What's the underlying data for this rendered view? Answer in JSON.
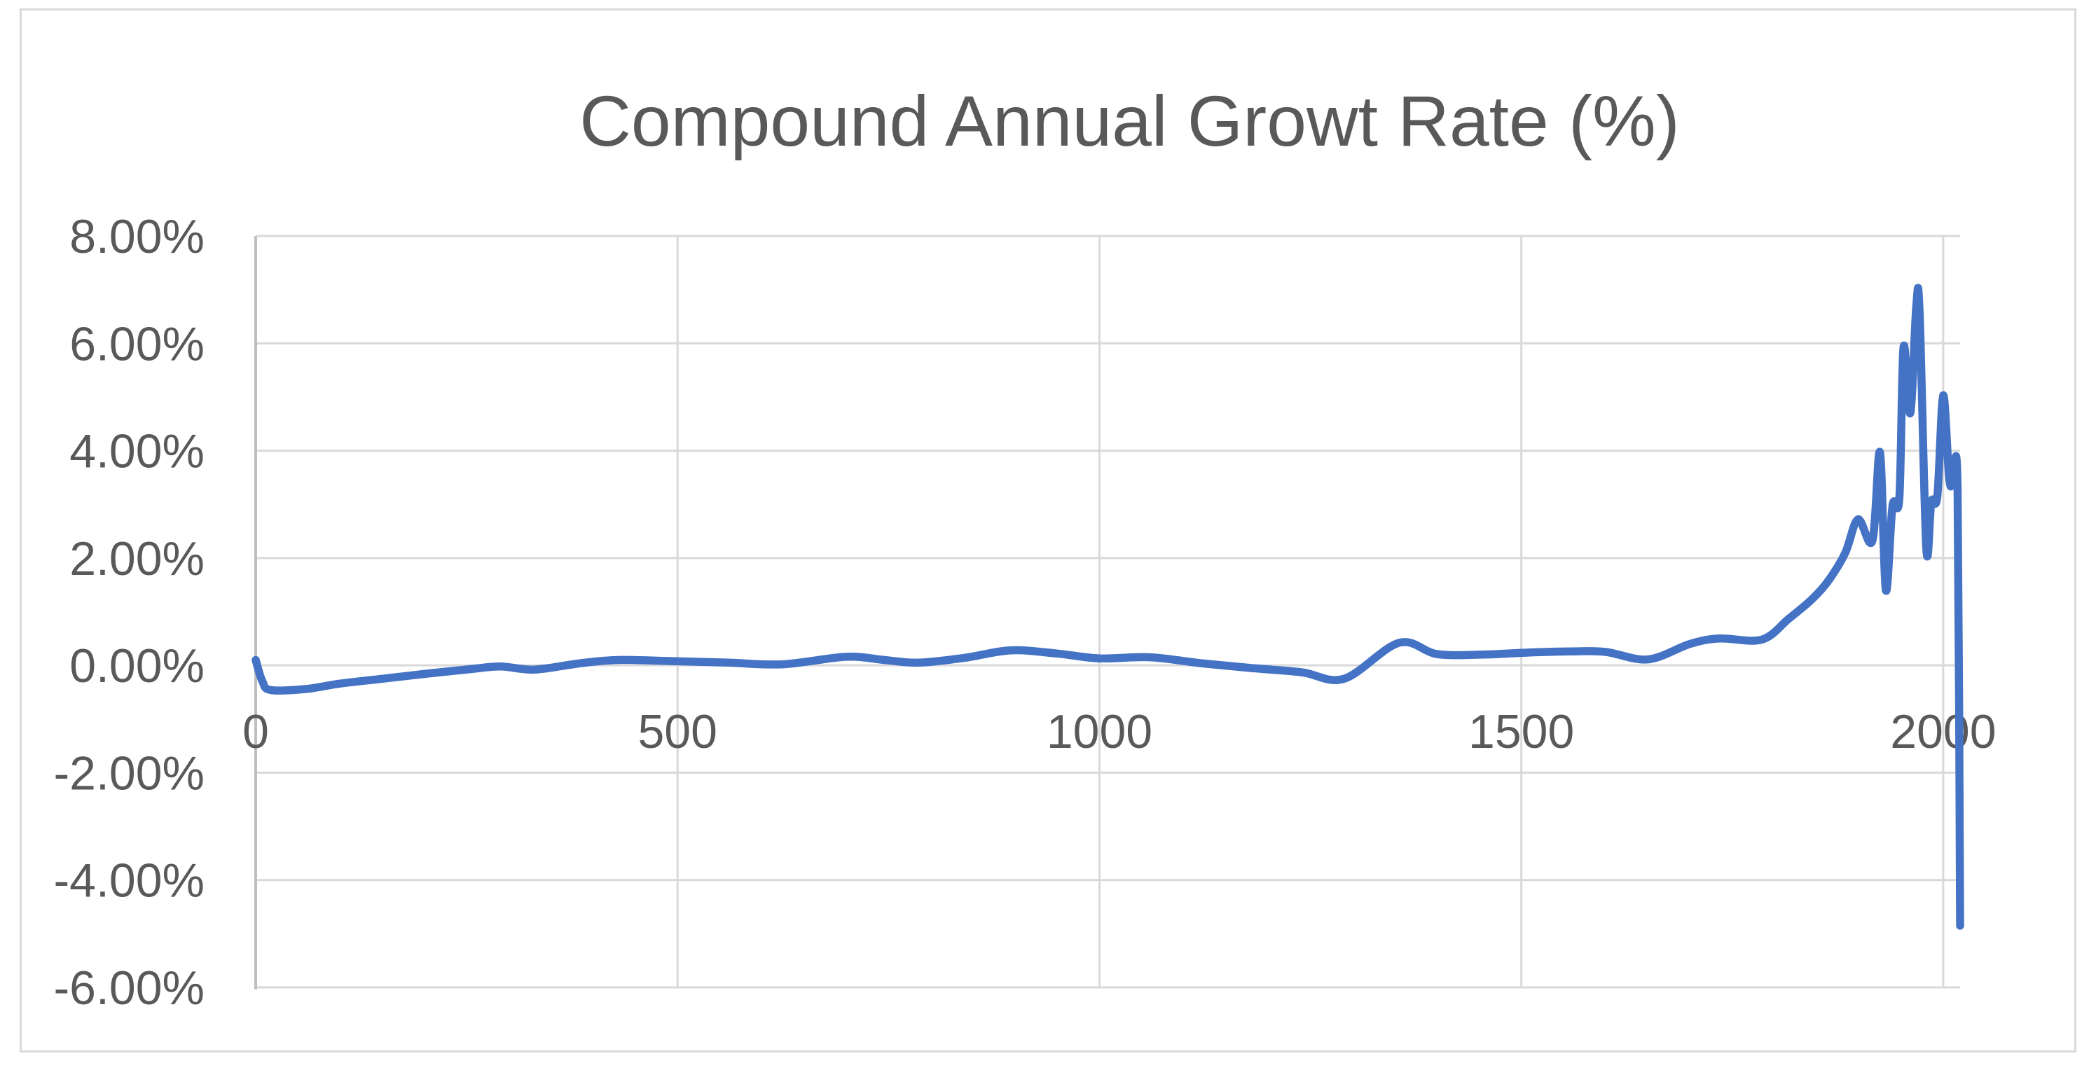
{
  "chart_data": {
    "type": "line",
    "title": "Compound Annual Growt Rate (%)",
    "xlabel": "",
    "ylabel": "",
    "xlim": [
      0,
      2020
    ],
    "ylim": [
      -6,
      8
    ],
    "grid": true,
    "legend": "none",
    "x_ticks": [
      {
        "value": 0,
        "label": "0"
      },
      {
        "value": 500,
        "label": "500"
      },
      {
        "value": 1000,
        "label": "1000"
      },
      {
        "value": 1500,
        "label": "1500"
      },
      {
        "value": 2000,
        "label": "2000"
      }
    ],
    "y_ticks": [
      {
        "value": 8,
        "label": "8.00%"
      },
      {
        "value": 6,
        "label": "6.00%"
      },
      {
        "value": 4,
        "label": "4.00%"
      },
      {
        "value": 2,
        "label": "2.00%"
      },
      {
        "value": 0,
        "label": "0.00%"
      },
      {
        "value": -2,
        "label": "-2.00%"
      },
      {
        "value": -4,
        "label": "-4.00%"
      },
      {
        "value": -6,
        "label": "-6.00%"
      }
    ],
    "series": [
      {
        "name": "Compound annual growth rate",
        "smoothed": true,
        "x": [
          0,
          8,
          18,
          60,
          100,
          150,
          200,
          255,
          290,
          330,
          385,
          430,
          490,
          560,
          625,
          700,
          745,
          785,
          840,
          895,
          950,
          1000,
          1060,
          1120,
          1180,
          1240,
          1290,
          1355,
          1400,
          1455,
          1510,
          1560,
          1600,
          1650,
          1700,
          1735,
          1785,
          1817,
          1845,
          1865,
          1884,
          1899,
          1916,
          1925,
          1932,
          1940,
          1948,
          1953,
          1961,
          1968,
          1972,
          1980,
          1986,
          1993,
          2000,
          2007,
          2011,
          2017,
          2020
        ],
        "y": [
          0.1,
          -0.3,
          -0.46,
          -0.44,
          -0.34,
          -0.25,
          -0.16,
          -0.07,
          -0.02,
          -0.08,
          0.04,
          0.1,
          0.08,
          0.05,
          0.02,
          0.16,
          0.1,
          0.05,
          0.14,
          0.28,
          0.22,
          0.13,
          0.15,
          0.04,
          -0.05,
          -0.13,
          -0.25,
          0.42,
          0.21,
          0.2,
          0.24,
          0.26,
          0.25,
          0.11,
          0.4,
          0.5,
          0.48,
          0.87,
          1.24,
          1.6,
          2.1,
          2.72,
          2.32,
          3.97,
          1.4,
          2.98,
          3.12,
          5.93,
          4.7,
          6.68,
          6.58,
          2.18,
          3.05,
          3.15,
          5.03,
          3.5,
          3.35,
          3.28,
          -4.85
        ]
      }
    ],
    "colors": {
      "line": "#4472C4",
      "gridline": "#D9D9D9",
      "axis_line": "#BFBFBF",
      "tick_text": "#595959",
      "title_text": "#595959",
      "frame_border": "#D9D9D9",
      "background": "#FFFFFF"
    }
  }
}
